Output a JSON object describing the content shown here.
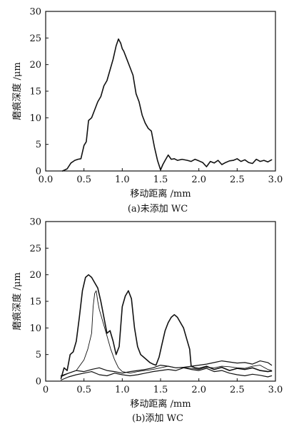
{
  "chart_data": [
    {
      "type": "line",
      "caption": "(a)未添加 WC",
      "xlabel": "移动距离 /mm",
      "ylabel": "磨痕深度 /μm",
      "xlim": [
        0,
        3.0
      ],
      "ylim": [
        0,
        30
      ],
      "xticks": [
        "0.0",
        "0.5",
        "1.0",
        "1.5",
        "2.0",
        "2.5",
        "3.0"
      ],
      "yticks": [
        "0",
        "5",
        "10",
        "15",
        "20",
        "25",
        "30"
      ],
      "grid": false,
      "series": [
        {
          "x": [
            0.22,
            0.28,
            0.33,
            0.38,
            0.42,
            0.46,
            0.5,
            0.53,
            0.56,
            0.6,
            0.64,
            0.68,
            0.72,
            0.76,
            0.8,
            0.84,
            0.88,
            0.92,
            0.95,
            0.98,
            1.0,
            1.02,
            1.06,
            1.1,
            1.14,
            1.18,
            1.22,
            1.26,
            1.3,
            1.34,
            1.38,
            1.42,
            1.46,
            1.5,
            1.53,
            1.56,
            1.6,
            1.64,
            1.68,
            1.72,
            1.78,
            1.85,
            1.9,
            1.95,
            2.0,
            2.05,
            2.1,
            2.15,
            2.2,
            2.25,
            2.3,
            2.35,
            2.4,
            2.45,
            2.5,
            2.55,
            2.6,
            2.65,
            2.7,
            2.75,
            2.8,
            2.85,
            2.9,
            2.95
          ],
          "y": [
            0,
            0.4,
            1.5,
            2.0,
            2.2,
            2.3,
            4.8,
            5.5,
            9.5,
            10.0,
            11.5,
            13.0,
            14.0,
            16.0,
            17.0,
            19.0,
            21.0,
            23.5,
            24.8,
            24.0,
            23.0,
            22.5,
            21.0,
            19.5,
            18.0,
            14.5,
            13.0,
            10.5,
            9.0,
            8.0,
            7.5,
            4.5,
            2.0,
            0.2,
            1.2,
            2.0,
            3.0,
            2.2,
            2.3,
            2.0,
            2.2,
            2.0,
            1.8,
            2.2,
            1.9,
            1.6,
            0.8,
            1.8,
            1.5,
            2.0,
            1.2,
            1.6,
            1.9,
            2.0,
            2.3,
            1.8,
            2.1,
            1.6,
            1.4,
            2.2,
            1.8,
            2.0,
            1.7,
            2.1
          ]
        }
      ]
    },
    {
      "type": "line",
      "caption": "(b)添加 WC",
      "xlabel": "移动距离 /mm",
      "ylabel": "磨痕深度 /μm",
      "xlim": [
        0,
        3.0
      ],
      "ylim": [
        0,
        30
      ],
      "xticks": [
        "0",
        "0.5",
        "1.0",
        "1.5",
        "2.0",
        "2.5",
        "3.0"
      ],
      "yticks": [
        "0",
        "5",
        "10",
        "15",
        "20",
        "25",
        "30"
      ],
      "grid": false,
      "series": [
        {
          "x": [
            0.2,
            0.24,
            0.28,
            0.32,
            0.36,
            0.4,
            0.44,
            0.48,
            0.52,
            0.56,
            0.6,
            0.64,
            0.68,
            0.72,
            0.76,
            0.8,
            0.84,
            0.88,
            0.92,
            0.96,
            1.0,
            1.04,
            1.08,
            1.12,
            1.16,
            1.2,
            1.24,
            1.28,
            1.32,
            1.36,
            1.4,
            1.44,
            1.48,
            1.52,
            1.56,
            1.6,
            1.64,
            1.68,
            1.72,
            1.76,
            1.8,
            1.84,
            1.88,
            1.9,
            1.95,
            2.0,
            2.1,
            2.2,
            2.3,
            2.4,
            2.5,
            2.6,
            2.7,
            2.8,
            2.9,
            2.95
          ],
          "y": [
            0.5,
            2.5,
            2.0,
            5.0,
            5.5,
            7.5,
            12.0,
            17.0,
            19.5,
            20.0,
            19.5,
            18.5,
            17.5,
            15.0,
            12.0,
            9.0,
            9.5,
            7.5,
            5.0,
            6.5,
            14.0,
            16.0,
            17.0,
            15.5,
            10.0,
            6.5,
            5.0,
            4.5,
            4.0,
            3.5,
            3.2,
            3.0,
            4.5,
            7.0,
            9.5,
            11.0,
            12.0,
            12.5,
            12.0,
            11.0,
            10.0,
            8.0,
            6.0,
            2.8,
            2.5,
            2.4,
            2.8,
            2.2,
            2.6,
            2.0,
            2.4,
            2.2,
            2.5,
            2.0,
            1.8,
            1.9
          ]
        },
        {
          "x": [
            0.2,
            0.3,
            0.4,
            0.5,
            0.55,
            0.6,
            0.62,
            0.64,
            0.66,
            0.68,
            0.7,
            0.72,
            0.75,
            0.8,
            0.85,
            0.9,
            0.95,
            1.0,
            1.1,
            1.2,
            1.3,
            1.4,
            1.5,
            1.6,
            1.7,
            1.8,
            1.9,
            2.0,
            2.1,
            2.2,
            2.3,
            2.4,
            2.5,
            2.6,
            2.7,
            2.8,
            2.9,
            2.95
          ],
          "y": [
            0.8,
            1.5,
            2.0,
            4.0,
            6.0,
            9.0,
            14.0,
            16.5,
            17.0,
            15.0,
            13.5,
            12.5,
            11.0,
            8.5,
            6.0,
            4.0,
            2.5,
            1.8,
            1.5,
            1.8,
            2.0,
            2.2,
            2.5,
            2.8,
            2.5,
            2.6,
            2.4,
            2.2,
            2.6,
            2.5,
            2.8,
            2.7,
            2.5,
            2.4,
            2.8,
            3.0,
            2.2,
            2.0
          ]
        },
        {
          "x": [
            0.2,
            0.3,
            0.4,
            0.5,
            0.6,
            0.7,
            0.8,
            0.9,
            1.0,
            1.1,
            1.2,
            1.3,
            1.4,
            1.5,
            1.6,
            1.7,
            1.8,
            1.9,
            2.0,
            2.1,
            2.2,
            2.3,
            2.4,
            2.5,
            2.6,
            2.7,
            2.8,
            2.9,
            2.95
          ],
          "y": [
            1.0,
            1.5,
            2.0,
            1.8,
            2.2,
            2.5,
            2.0,
            1.8,
            1.5,
            1.8,
            2.0,
            2.2,
            2.5,
            3.0,
            2.8,
            2.5,
            2.6,
            2.8,
            3.0,
            3.2,
            3.5,
            3.8,
            3.6,
            3.4,
            3.5,
            3.2,
            3.8,
            3.5,
            3.0
          ]
        },
        {
          "x": [
            0.2,
            0.3,
            0.4,
            0.5,
            0.6,
            0.7,
            0.8,
            0.9,
            1.0,
            1.1,
            1.2,
            1.3,
            1.4,
            1.5,
            1.6,
            1.7,
            1.8,
            1.9,
            2.0,
            2.1,
            2.2,
            2.3,
            2.4,
            2.5,
            2.6,
            2.7,
            2.8,
            2.9,
            2.95
          ],
          "y": [
            0.2,
            0.8,
            1.2,
            1.5,
            1.8,
            1.2,
            1.0,
            1.5,
            1.2,
            1.0,
            1.2,
            1.5,
            1.8,
            2.0,
            2.2,
            2.0,
            2.5,
            2.2,
            2.0,
            2.4,
            1.8,
            2.0,
            1.5,
            1.2,
            1.0,
            1.3,
            1.1,
            0.8,
            1.0
          ]
        }
      ]
    }
  ]
}
